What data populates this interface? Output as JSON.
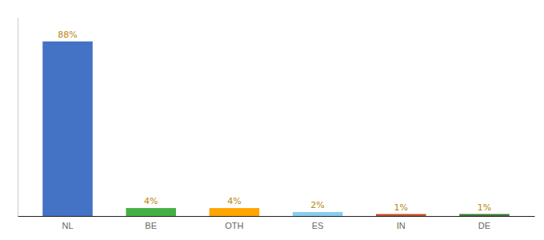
{
  "chart_data": {
    "type": "bar",
    "categories": [
      "NL",
      "BE",
      "OTH",
      "ES",
      "IN",
      "DE"
    ],
    "values": [
      88,
      4,
      4,
      2,
      1,
      1
    ],
    "value_labels": [
      "88%",
      "4%",
      "4%",
      "2%",
      "1%",
      "1%"
    ],
    "colors": [
      "#4472c4",
      "#44b044",
      "#ffa500",
      "#87ceeb",
      "#c0522a",
      "#3a7a3a"
    ],
    "ylim": [
      0,
      100
    ],
    "data_labels": true,
    "tick_labels": "x",
    "grid": false
  }
}
